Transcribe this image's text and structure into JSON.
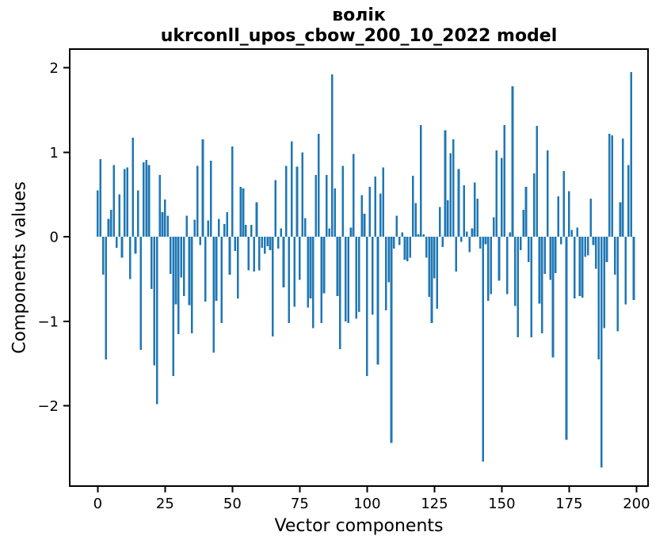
{
  "figure": {
    "background": "#ffffff",
    "axis_color": "#000000",
    "text_color": "#000000"
  },
  "chart_data": {
    "type": "bar",
    "title": "волік",
    "subtitle": "ukrconll_upos_cbow_200_10_2022 model",
    "xlabel": "Vector components",
    "ylabel": "Components values",
    "bar_color": "#1f77b4",
    "n_bars": 200,
    "x_ticks": [
      0,
      25,
      50,
      75,
      100,
      125,
      150,
      175,
      200
    ],
    "y_ticks": [
      -2,
      -1,
      0,
      1,
      2
    ],
    "xlim": [
      -10.4,
      204.3
    ],
    "ylim": [
      -2.95,
      2.22
    ],
    "grid": false,
    "legend": null,
    "values": [
      0.55,
      0.92,
      -0.45,
      -1.45,
      0.21,
      0.32,
      0.85,
      -0.13,
      0.5,
      -0.25,
      0.8,
      0.82,
      -0.5,
      1.17,
      -0.2,
      0.55,
      -1.34,
      0.88,
      0.91,
      0.85,
      -0.62,
      -1.52,
      -1.98,
      0.73,
      0.29,
      0.44,
      0.25,
      -0.44,
      -1.65,
      -0.8,
      -1.15,
      -0.48,
      -0.7,
      0.25,
      -0.81,
      -1.14,
      0.2,
      0.84,
      -0.1,
      1.15,
      -0.77,
      0.19,
      0.9,
      -1.37,
      -0.76,
      0.21,
      -1.02,
      0.15,
      0.29,
      -0.45,
      1.07,
      -0.17,
      -0.73,
      0.59,
      0.57,
      0.14,
      -0.4,
      0.14,
      -0.41,
      0.41,
      -0.4,
      -0.13,
      -0.2,
      -0.11,
      -0.16,
      -1.18,
      0.67,
      -0.14,
      0.1,
      -0.6,
      0.84,
      -1.02,
      1.13,
      -0.83,
      0.83,
      -0.51,
      1.0,
      0.22,
      -0.84,
      -0.73,
      -1.08,
      0.73,
      1.22,
      -1.02,
      -0.67,
      0.73,
      0.1,
      1.92,
      0.57,
      -0.7,
      -1.33,
      0.84,
      -1.0,
      -1.02,
      0.11,
      0.98,
      -0.97,
      -0.89,
      0.49,
      0.27,
      -1.65,
      0.59,
      -0.92,
      0.71,
      -1.51,
      0.51,
      0.82,
      -0.87,
      -0.54,
      -2.44,
      -0.14,
      0.25,
      -0.1,
      0.05,
      -0.27,
      -0.29,
      -0.25,
      0.72,
      0.4,
      0.03,
      1.32,
      0.03,
      -0.25,
      -0.71,
      -1.02,
      -0.49,
      -0.85,
      0.35,
      -0.12,
      1.26,
      0.43,
      0.99,
      1.15,
      -0.41,
      0.8,
      -0.06,
      0.61,
      0.06,
      -0.18,
      0.1,
      0.64,
      0.45,
      -0.14,
      -2.66,
      -0.09,
      -0.76,
      -0.68,
      0.23,
      1.02,
      -0.52,
      0.93,
      1.32,
      -0.68,
      0.05,
      1.78,
      -0.82,
      -1.19,
      -0.16,
      0.32,
      0.59,
      -0.3,
      -1.19,
      0.75,
      1.31,
      -0.79,
      -1.14,
      -0.44,
      1.02,
      -0.51,
      -1.43,
      -0.43,
      0.48,
      -0.09,
      0.78,
      -2.4,
      0.54,
      0.08,
      -0.73,
      0.11,
      -0.7,
      -0.72,
      -0.24,
      -0.22,
      0.45,
      -0.1,
      -0.38,
      -1.45,
      -2.73,
      -1.08,
      -0.3,
      1.22,
      1.2,
      -0.45,
      -1.12,
      0.41,
      1.16,
      -0.8,
      0.85,
      1.95,
      -0.75
    ]
  }
}
